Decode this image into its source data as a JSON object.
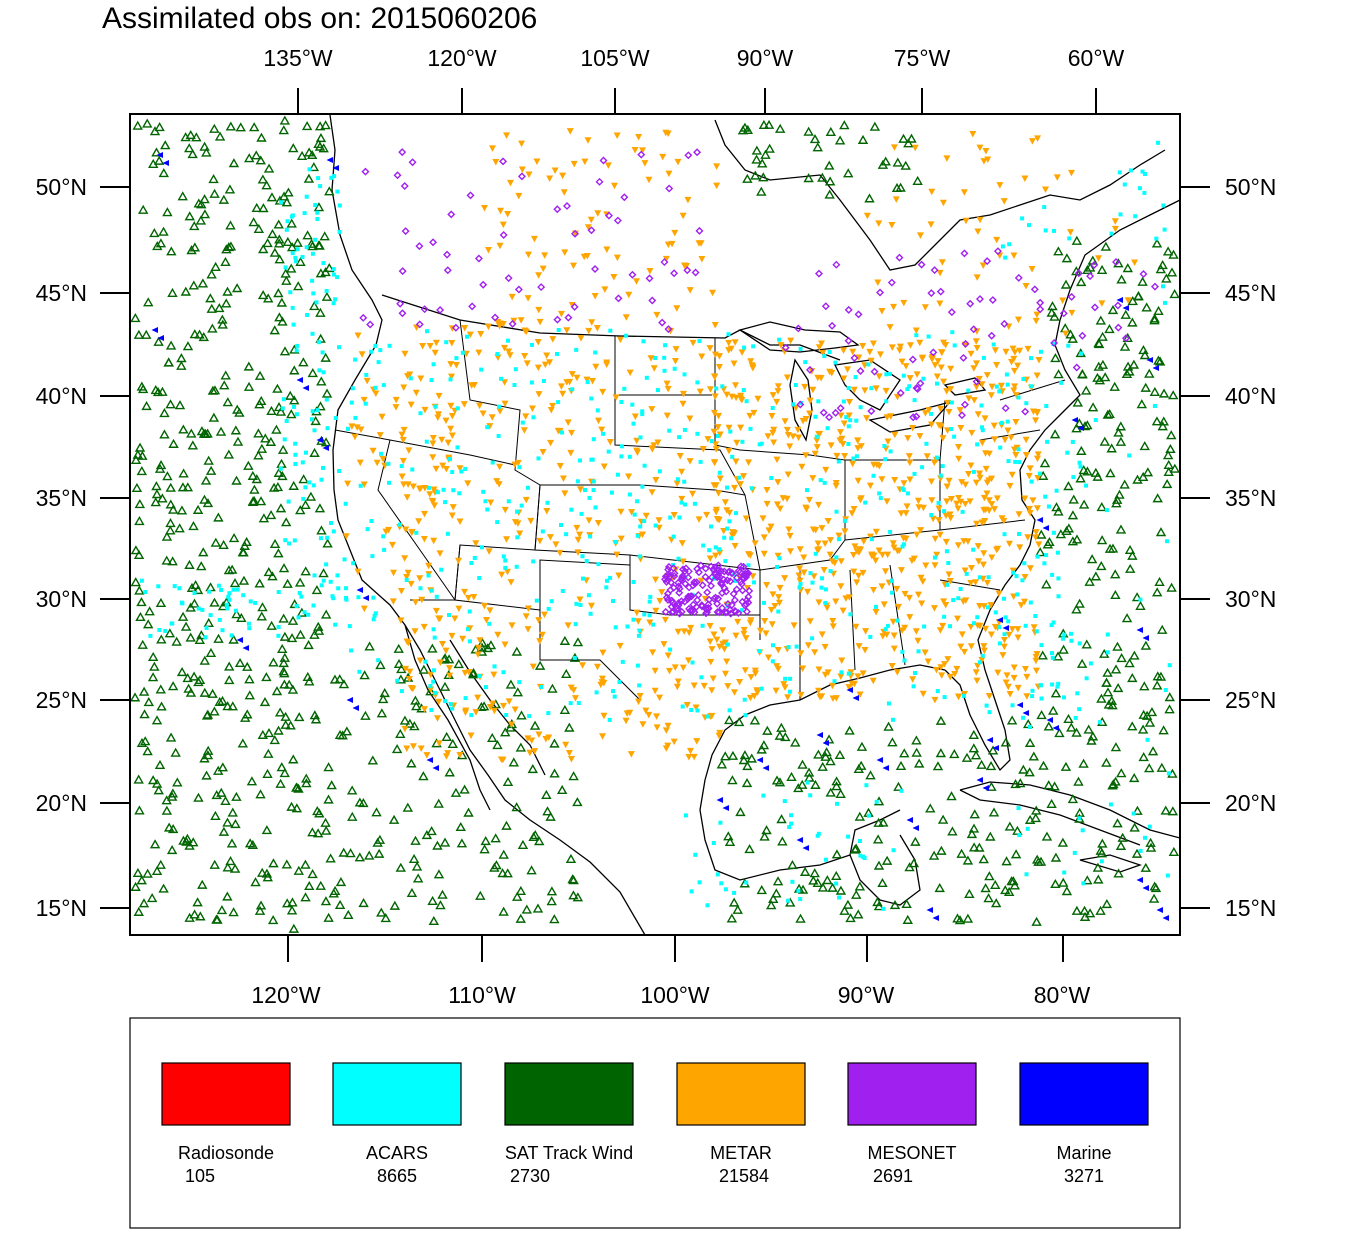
{
  "title": "Assimilated obs on: 2015060206",
  "map": {
    "region": "Continental United States and surrounding oceans",
    "projection": "Lambert conformal",
    "top_axis_labels": [
      "135°W",
      "120°W",
      "105°W",
      "90°W",
      "75°W",
      "60°W"
    ],
    "bottom_axis_labels": [
      "120°W",
      "110°W",
      "100°W",
      "90°W",
      "80°W"
    ],
    "left_axis_labels": [
      "50°N",
      "45°N",
      "40°N",
      "35°N",
      "30°N",
      "25°N",
      "20°N",
      "15°N"
    ],
    "right_axis_labels": [
      "50°N",
      "45°N",
      "40°N",
      "35°N",
      "30°N",
      "25°N",
      "20°N",
      "15°N"
    ]
  },
  "legend": {
    "items": [
      {
        "key": "radiosonde",
        "label": "Radiosonde",
        "count": "105",
        "color": "#ff0000"
      },
      {
        "key": "acars",
        "label": "ACARS",
        "count": "8665",
        "color": "#00ffff"
      },
      {
        "key": "sat",
        "label": "SAT Track Wind",
        "count": "2730",
        "color": "#006400"
      },
      {
        "key": "metar",
        "label": "METAR",
        "count": "21584",
        "color": "#ffa500"
      },
      {
        "key": "mesonet",
        "label": "MESONET",
        "count": "2691",
        "color": "#a020f0"
      },
      {
        "key": "marine",
        "label": "Marine",
        "count": "3271",
        "color": "#0000ff"
      }
    ]
  },
  "observation_symbols": {
    "acars": "small-square",
    "sat": "hollow-triangle",
    "metar": "down-triangle",
    "mesonet": "small-diamond",
    "marine": "left-triangle"
  }
}
